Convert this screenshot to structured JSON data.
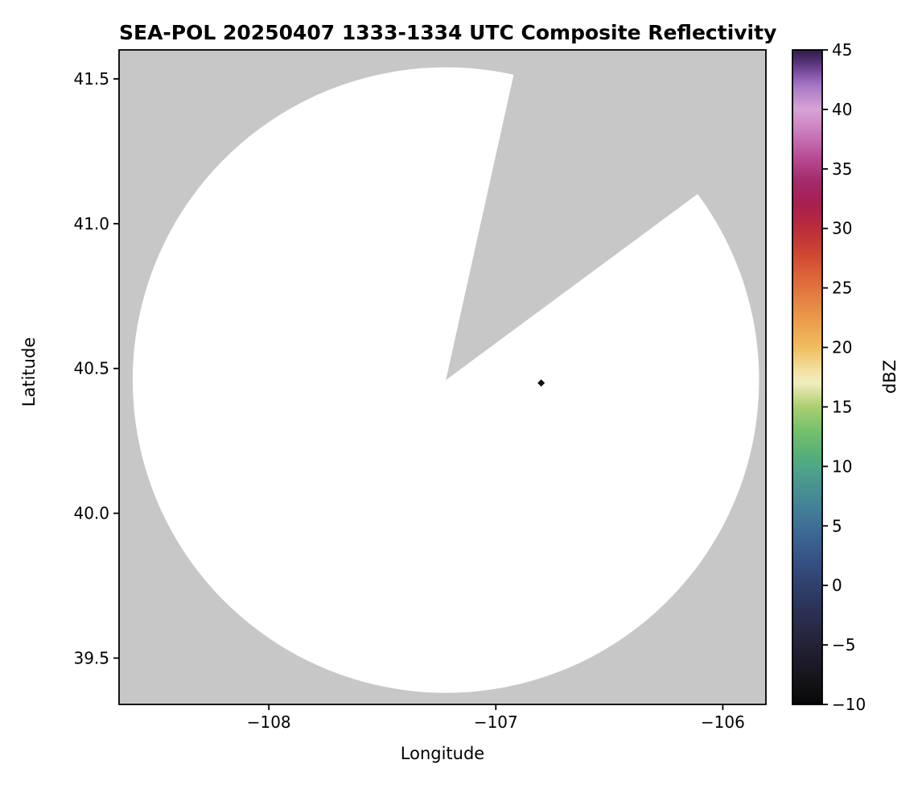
{
  "figure": {
    "title": "SEA-POL 20250407 1333-1334 UTC Composite Reflectivity",
    "xlabel": "Longitude",
    "ylabel": "Latitude",
    "colorbar_label": "dBZ"
  },
  "chart_data": {
    "type": "heatmap",
    "title": "SEA-POL 20250407 1333-1334 UTC Composite Reflectivity",
    "xlabel": "Longitude",
    "ylabel": "Latitude",
    "xlim": [
      -108.66,
      -105.81
    ],
    "ylim": [
      39.34,
      41.6
    ],
    "xticks": {
      "values": [
        -108,
        -107,
        -106
      ],
      "labels": [
        "−108",
        "−107",
        "−106"
      ]
    },
    "yticks": {
      "values": [
        39.5,
        40.0,
        40.5,
        41.0,
        41.5
      ],
      "labels": [
        "39.5",
        "40.0",
        "40.5",
        "41.0",
        "41.5"
      ]
    },
    "style": {
      "background_fill": "#c7c7c7",
      "coverage_fill": "#ffffff",
      "frame_color": "#000000"
    },
    "radar_coverage": {
      "center_lon": -107.22,
      "center_lat": 40.46,
      "radius_deg_lon": 1.38,
      "radius_deg_lat": 1.08,
      "blocked_sector_azimuth_deg": [
        12.5,
        53.5
      ]
    },
    "echoes": [
      {
        "lon": -106.8,
        "lat": 40.45,
        "approx_dbz": -8,
        "color": "#101010",
        "shape": "diamond"
      }
    ],
    "colorbar": {
      "label": "dBZ",
      "min": -10,
      "max": 45,
      "tick_values": [
        -10,
        -5,
        0,
        5,
        10,
        15,
        20,
        25,
        30,
        35,
        40,
        45
      ],
      "tick_labels": [
        "−10",
        "−5",
        "0",
        "5",
        "10",
        "15",
        "20",
        "25",
        "30",
        "35",
        "40",
        "45"
      ],
      "stops": [
        [
          -10,
          "#070707"
        ],
        [
          -8,
          "#151319"
        ],
        [
          -6,
          "#1f1d2c"
        ],
        [
          -4,
          "#272741"
        ],
        [
          -2,
          "#2c3257"
        ],
        [
          0,
          "#30406c"
        ],
        [
          2,
          "#355083"
        ],
        [
          4,
          "#3b6492"
        ],
        [
          6,
          "#417a97"
        ],
        [
          8,
          "#479092"
        ],
        [
          10,
          "#4fa687"
        ],
        [
          11,
          "#57b077"
        ],
        [
          13,
          "#75c06b"
        ],
        [
          15,
          "#a9cf72"
        ],
        [
          16,
          "#cfdc92"
        ],
        [
          17,
          "#eeeebe"
        ],
        [
          18,
          "#f1e3a3"
        ],
        [
          20,
          "#f0bd5f"
        ],
        [
          22,
          "#eca04e"
        ],
        [
          24,
          "#e58242"
        ],
        [
          26,
          "#dc6338"
        ],
        [
          28,
          "#cd4532"
        ],
        [
          30,
          "#bb2c3b"
        ],
        [
          32,
          "#a81f50"
        ],
        [
          34,
          "#a42a6c"
        ],
        [
          36,
          "#b74d95"
        ],
        [
          38,
          "#cb79ba"
        ],
        [
          40,
          "#d8a3d6"
        ],
        [
          42,
          "#a678c3"
        ],
        [
          43,
          "#7f52a3"
        ],
        [
          44,
          "#553177"
        ],
        [
          45,
          "#2f1c46"
        ]
      ]
    }
  }
}
